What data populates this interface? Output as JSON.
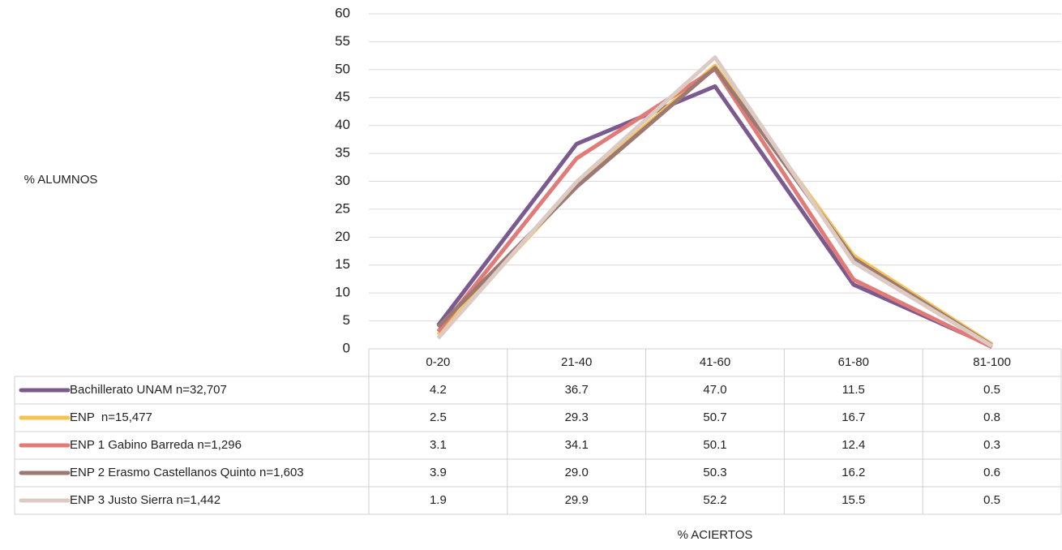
{
  "chart_data": {
    "type": "line",
    "x_label": "% ACIERTOS",
    "y_label": "% ALUMNOS",
    "categories": [
      "0-20",
      "21-40",
      "41-60",
      "61-80",
      "81-100"
    ],
    "ylim": [
      0,
      60
    ],
    "yticks": [
      0,
      5,
      10,
      15,
      20,
      25,
      30,
      35,
      40,
      45,
      50,
      55,
      60
    ],
    "grid": true,
    "series": [
      {
        "name": "Bachillerato UNAM n=32,707",
        "color": "#7b5a8f",
        "values": [
          4.2,
          36.7,
          47.0,
          11.5,
          0.5
        ],
        "value_labels": [
          "4.2",
          "36.7",
          "47.0",
          "11.5",
          "0.5"
        ]
      },
      {
        "name": "ENP  n=15,477",
        "color": "#f6c34e",
        "values": [
          2.5,
          29.3,
          50.7,
          16.7,
          0.8
        ],
        "value_labels": [
          "2.5",
          "29.3",
          "50.7",
          "16.7",
          "0.8"
        ]
      },
      {
        "name": "ENP 1 Gabino Barreda n=1,296",
        "color": "#e07b78",
        "values": [
          3.1,
          34.1,
          50.1,
          12.4,
          0.3
        ],
        "value_labels": [
          "3.1",
          "34.1",
          "50.1",
          "12.4",
          "0.3"
        ]
      },
      {
        "name": "ENP 2 Erasmo Castellanos Quinto n=1,603",
        "color": "#9c7a73",
        "values": [
          3.9,
          29.0,
          50.3,
          16.2,
          0.6
        ],
        "value_labels": [
          "3.9",
          "29.0",
          "50.3",
          "16.2",
          "0.6"
        ]
      },
      {
        "name": "ENP 3 Justo Sierra n=1,442",
        "color": "#dccbc4",
        "values": [
          1.9,
          29.9,
          52.2,
          15.5,
          0.5
        ],
        "value_labels": [
          "1.9",
          "29.9",
          "52.2",
          "15.5",
          "0.5"
        ]
      }
    ]
  }
}
